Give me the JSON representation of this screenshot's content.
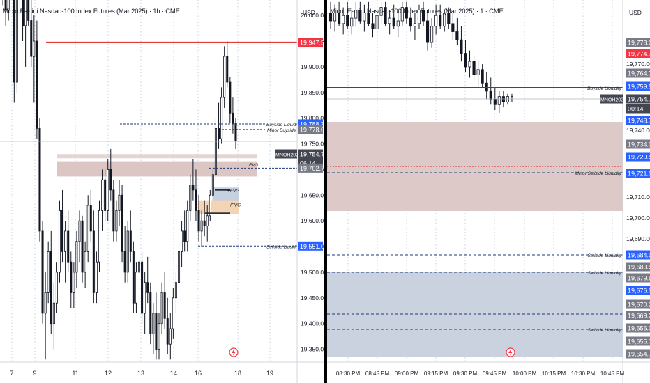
{
  "colors": {
    "candle": "#131722",
    "grid": "#c4d2e3",
    "red_level": "#e11f1f",
    "blue_level": "#1f3fd8",
    "dashed_level": "#1e3a78",
    "fvg_zone": "#d9c3c1",
    "blue_zone": "#c7d0de",
    "ifvg_zone": "#f3d4b4",
    "price_tag_blue": "#2962ff",
    "price_tag_red": "#f23645",
    "price_tag_dark": "#434651",
    "price_tag_grey": "#787b86"
  },
  "left_pane": {
    "title": "Micro E-mini Nasdaq-100 Index Futures (Mar 2025) · 1h · CME",
    "currency": "USD",
    "chart_data": {
      "type": "candlestick",
      "yaxis_ticks": [
        "20,000.00",
        "19,950.00",
        "19,900.00",
        "19,850.00",
        "19,800.00",
        "19,750.00",
        "19,700.00",
        "19,650.00",
        "19,600.00",
        "19,550.00",
        "19,500.00",
        "19,450.00",
        "19,400.00",
        "19,350.00"
      ],
      "xaxis_ticks": [
        "7",
        "9",
        "11",
        "12",
        "13",
        "14",
        "16",
        "18",
        "19"
      ],
      "ylim": [
        19325,
        20030
      ],
      "price_tags": [
        {
          "label": "19,947.50",
          "style": "red"
        },
        {
          "label": "19,788.75",
          "style": "blue"
        },
        {
          "label": "19,778.00",
          "style": "grey"
        },
        {
          "label": "MNQH2025",
          "style": "dark"
        },
        {
          "label": "19,754.75",
          "style": "dark"
        },
        {
          "label": "06:14",
          "style": "dark"
        },
        {
          "label": "19,702.75",
          "style": "grey"
        },
        {
          "label": "19,551.00",
          "style": "blue"
        }
      ],
      "annotations": [
        "Buyside Liquidity",
        "Minor Buyside",
        "FVG",
        "+FVG",
        "IFVG",
        "Sellside Liquidity"
      ],
      "levels": {
        "red": 19947.5,
        "buyside": 19788.75,
        "minor_buyside": 19778,
        "current": 19754.75,
        "minor_level": 19702.75,
        "sellside": 19551
      },
      "series": [
        {
          "name": "MNQH2025",
          "ohlc": [
            [
              20120,
              20180,
              20020,
              20060
            ],
            [
              20060,
              20110,
              19980,
              20010
            ],
            [
              20010,
              20150,
              19990,
              20120
            ],
            [
              20120,
              20160,
              20030,
              20050
            ],
            [
              20050,
              20090,
              19830,
              19870
            ],
            [
              19870,
              20100,
              19850,
              20060
            ],
            [
              20060,
              20140,
              20000,
              20100
            ],
            [
              20100,
              20150,
              19950,
              19980
            ],
            [
              19980,
              20080,
              19900,
              20050
            ],
            [
              20050,
              20120,
              19980,
              19990
            ],
            [
              19990,
              20070,
              19900,
              19920
            ],
            [
              19920,
              20000,
              19830,
              19950
            ],
            [
              19950,
              19990,
              19760,
              19780
            ],
            [
              19780,
              19800,
              19560,
              19580
            ],
            [
              19580,
              19600,
              19400,
              19420
            ],
            [
              19420,
              19500,
              19330,
              19460
            ],
            [
              19460,
              19560,
              19440,
              19540
            ],
            [
              19540,
              19580,
              19380,
              19400
            ],
            [
              19400,
              19480,
              19350,
              19440
            ],
            [
              19440,
              19520,
              19420,
              19500
            ],
            [
              19500,
              19640,
              19480,
              19620
            ],
            [
              19620,
              19660,
              19520,
              19540
            ],
            [
              19540,
              19600,
              19480,
              19580
            ],
            [
              19580,
              19620,
              19500,
              19520
            ],
            [
              19520,
              19540,
              19430,
              19460
            ],
            [
              19460,
              19520,
              19430,
              19500
            ],
            [
              19500,
              19580,
              19470,
              19560
            ],
            [
              19560,
              19620,
              19520,
              19600
            ],
            [
              19600,
              19610,
              19480,
              19500
            ],
            [
              19500,
              19560,
              19470,
              19540
            ],
            [
              19540,
              19650,
              19520,
              19630
            ],
            [
              19630,
              19660,
              19560,
              19580
            ],
            [
              19580,
              19620,
              19440,
              19460
            ],
            [
              19460,
              19540,
              19440,
              19520
            ],
            [
              19520,
              19640,
              19500,
              19620
            ],
            [
              19620,
              19700,
              19580,
              19680
            ],
            [
              19680,
              19700,
              19600,
              19620
            ],
            [
              19620,
              19720,
              19600,
              19700
            ],
            [
              19700,
              19740,
              19640,
              19660
            ],
            [
              19660,
              19680,
              19560,
              19580
            ],
            [
              19580,
              19640,
              19560,
              19620
            ],
            [
              19620,
              19680,
              19590,
              19650
            ],
            [
              19650,
              19670,
              19520,
              19540
            ],
            [
              19540,
              19590,
              19480,
              19500
            ],
            [
              19500,
              19600,
              19480,
              19580
            ],
            [
              19580,
              19620,
              19520,
              19540
            ],
            [
              19540,
              19560,
              19420,
              19440
            ],
            [
              19440,
              19520,
              19420,
              19500
            ],
            [
              19500,
              19560,
              19470,
              19520
            ],
            [
              19520,
              19540,
              19400,
              19420
            ],
            [
              19420,
              19500,
              19380,
              19480
            ],
            [
              19480,
              19530,
              19440,
              19460
            ],
            [
              19460,
              19480,
              19360,
              19380
            ],
            [
              19380,
              19440,
              19340,
              19420
            ],
            [
              19420,
              19460,
              19330,
              19350
            ],
            [
              19350,
              19420,
              19330,
              19400
            ],
            [
              19400,
              19480,
              19380,
              19460
            ],
            [
              19460,
              19500,
              19390,
              19410
            ],
            [
              19410,
              19450,
              19340,
              19360
            ],
            [
              19360,
              19420,
              19330,
              19390
            ],
            [
              19390,
              19470,
              19370,
              19450
            ],
            [
              19450,
              19500,
              19420,
              19480
            ],
            [
              19480,
              19560,
              19460,
              19540
            ],
            [
              19540,
              19600,
              19510,
              19580
            ],
            [
              19580,
              19620,
              19540,
              19560
            ],
            [
              19560,
              19640,
              19540,
              19620
            ],
            [
              19620,
              19690,
              19600,
              19670
            ],
            [
              19670,
              19720,
              19640,
              19660
            ],
            [
              19660,
              19700,
              19600,
              19620
            ],
            [
              19620,
              19650,
              19560,
              19580
            ],
            [
              19580,
              19620,
              19550,
              19600
            ],
            [
              19600,
              19640,
              19570,
              19590
            ],
            [
              19590,
              19630,
              19560,
              19610
            ],
            [
              19610,
              19660,
              19600,
              19650
            ],
            [
              19650,
              19700,
              19640,
              19690
            ],
            [
              19690,
              19800,
              19680,
              19780
            ],
            [
              19780,
              19830,
              19740,
              19760
            ],
            [
              19760,
              19860,
              19750,
              19840
            ],
            [
              19840,
              19940,
              19820,
              19920
            ],
            [
              19920,
              19950,
              19860,
              19870
            ],
            [
              19870,
              19880,
              19790,
              19810
            ],
            [
              19810,
              19840,
              19770,
              19790
            ],
            [
              19790,
              19800,
              19740,
              19755
            ]
          ]
        }
      ]
    }
  },
  "right_pane": {
    "title": "Micro E-mini Nasdaq-100 Index Futures (Mar 2025) · 1 · CME",
    "currency": "USD",
    "chart_data": {
      "type": "candlestick",
      "yaxis_ticks": [
        "19,770.00",
        "19,740.00",
        "19,710.00",
        "19,700.00",
        "19,690.00",
        "19,660.00"
      ],
      "xaxis_ticks": [
        "08:30 PM",
        "08:45 PM",
        "09:00 PM",
        "09:15 PM",
        "09:30 PM",
        "09:45 PM",
        "10:00 PM",
        "10:15 PM",
        "10:30 PM",
        "10:45 PM"
      ],
      "ylim": [
        19650,
        19790
      ],
      "price_tags": [
        {
          "label": "19,778.00",
          "style": "grey"
        },
        {
          "label": "19,774.75",
          "style": "red"
        },
        {
          "label": "19,764.75",
          "style": "grey"
        },
        {
          "label": "19,759.50",
          "style": "blue"
        },
        {
          "label": "MNQH2025",
          "style": "dark"
        },
        {
          "label": "19,754.75",
          "style": "dark"
        },
        {
          "label": "00:14",
          "style": "dark"
        },
        {
          "label": "19,748.75",
          "style": "blue"
        },
        {
          "label": "19,734.00",
          "style": "grey"
        },
        {
          "label": "19,729.50",
          "style": "blue"
        },
        {
          "label": "19,721.00",
          "style": "blue"
        },
        {
          "label": "19,684.00",
          "style": "blue"
        },
        {
          "label": "19,683.50",
          "style": "grey"
        },
        {
          "label": "19,679.50",
          "style": "grey"
        },
        {
          "label": "19,676.00",
          "style": "blue"
        },
        {
          "label": "19,670.25",
          "style": "grey"
        },
        {
          "label": "19,669.25",
          "style": "grey"
        },
        {
          "label": "19,656.00",
          "style": "grey"
        },
        {
          "label": "19,655.75",
          "style": "grey"
        },
        {
          "label": "19,654.75",
          "style": "grey"
        }
      ],
      "annotations": [
        "Buyside Liquidity",
        "Minor Sellside Liquidity",
        "Sellside Liquidity",
        "Sellside Liquidity",
        "Sellside Liquidity"
      ],
      "levels": {
        "buyside": 19759.5,
        "current": 19754.75,
        "minor_sellside": 19721,
        "sellside_1": 19684,
        "sellside_2": 19676,
        "sellside_3": 19669.25,
        "sellside_4": 19662
      },
      "series": [
        {
          "name": "MNQH2025",
          "ohlc": [
            [
              19786,
              19790,
              19780,
              19783
            ],
            [
              19783,
              19789,
              19779,
              19786
            ],
            [
              19786,
              19790,
              19781,
              19782
            ],
            [
              19782,
              19788,
              19778,
              19785
            ],
            [
              19785,
              19790,
              19780,
              19781
            ],
            [
              19781,
              19787,
              19778,
              19784
            ],
            [
              19784,
              19790,
              19781,
              19787
            ],
            [
              19787,
              19790,
              19782,
              19783
            ],
            [
              19783,
              19789,
              19779,
              19786
            ],
            [
              19786,
              19790,
              19781,
              19782
            ],
            [
              19782,
              19786,
              19777,
              19780
            ],
            [
              19780,
              19788,
              19778,
              19785
            ],
            [
              19785,
              19790,
              19782,
              19788
            ],
            [
              19788,
              19790,
              19781,
              19782
            ],
            [
              19782,
              19787,
              19778,
              19784
            ],
            [
              19784,
              19789,
              19780,
              19781
            ],
            [
              19781,
              19786,
              19777,
              19783
            ],
            [
              19783,
              19790,
              19781,
              19788
            ],
            [
              19788,
              19790,
              19782,
              19784
            ],
            [
              19784,
              19788,
              19779,
              19781
            ],
            [
              19781,
              19786,
              19776,
              19782
            ],
            [
              19782,
              19789,
              19780,
              19787
            ],
            [
              19787,
              19790,
              19781,
              19783
            ],
            [
              19783,
              19787,
              19772,
              19775
            ],
            [
              19775,
              19784,
              19773,
              19781
            ],
            [
              19781,
              19789,
              19778,
              19785
            ],
            [
              19785,
              19789,
              19780,
              19781
            ],
            [
              19781,
              19787,
              19779,
              19786
            ],
            [
              19786,
              19788,
              19780,
              19782
            ],
            [
              19782,
              19786,
              19776,
              19779
            ],
            [
              19779,
              19784,
              19774,
              19776
            ],
            [
              19776,
              19781,
              19768,
              19771
            ],
            [
              19771,
              19776,
              19764,
              19766
            ],
            [
              19766,
              19772,
              19762,
              19768
            ],
            [
              19768,
              19770,
              19761,
              19763
            ],
            [
              19763,
              19768,
              19759,
              19765
            ],
            [
              19765,
              19767,
              19758,
              19760
            ],
            [
              19760,
              19764,
              19754,
              19757
            ],
            [
              19757,
              19762,
              19752,
              19754
            ],
            [
              19754,
              19758,
              19750,
              19752
            ],
            [
              19752,
              19757,
              19749,
              19755
            ],
            [
              19755,
              19757,
              19751,
              19753
            ],
            [
              19753,
              19756,
              19752,
              19755
            ],
            [
              19755,
              19756,
              19753,
              19754.75
            ]
          ]
        }
      ]
    }
  }
}
